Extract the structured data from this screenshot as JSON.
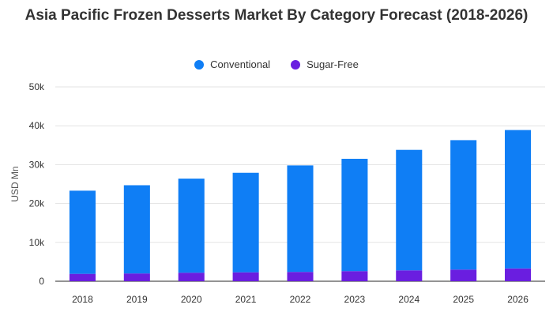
{
  "chart_data": {
    "type": "bar",
    "stacked": true,
    "title": "Asia Pacific Frozen Desserts Market By Category Forecast (2018-2026)",
    "xlabel": "",
    "ylabel": "USD Mn",
    "ylim": [
      0,
      50000
    ],
    "yticks": [
      0,
      10000,
      20000,
      30000,
      40000,
      50000
    ],
    "ytick_labels": [
      "0",
      "10k",
      "20k",
      "30k",
      "40k",
      "50k"
    ],
    "grid": true,
    "legend_position": "top",
    "categories": [
      "2018",
      "2019",
      "2020",
      "2021",
      "2022",
      "2023",
      "2024",
      "2025",
      "2026"
    ],
    "series": [
      {
        "name": "Sugar-Free",
        "color": "#6a1ee0",
        "values": [
          1900,
          2000,
          2200,
          2300,
          2400,
          2600,
          2800,
          3000,
          3300
        ]
      },
      {
        "name": "Conventional",
        "color": "#0f7ef5",
        "values": [
          21400,
          22700,
          24200,
          25600,
          27400,
          28900,
          31000,
          33300,
          35600
        ]
      }
    ]
  }
}
